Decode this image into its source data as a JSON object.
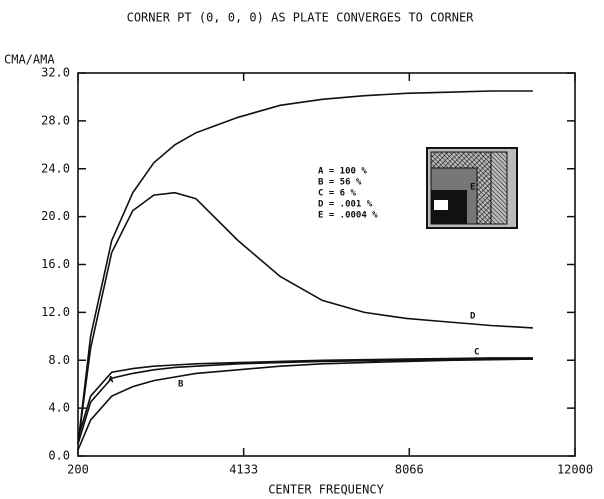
{
  "chart_data": {
    "type": "line",
    "title": "CORNER PT (0, 0, 0) AS PLATE CONVERGES TO CORNER",
    "y_label": "CMA/AMA",
    "x_label": "CENTER FREQUENCY",
    "x": [
      200,
      500,
      1000,
      1500,
      2000,
      2500,
      3000,
      4000,
      5000,
      6000,
      7000,
      8000,
      9000,
      10000,
      11000
    ],
    "series": [
      {
        "name": "A",
        "color": "#111111",
        "values": [
          1,
          4.5,
          6.5,
          6.9,
          7.2,
          7.4,
          7.5,
          7.7,
          7.8,
          7.9,
          7.95,
          8.0,
          8.05,
          8.1,
          8.1
        ]
      },
      {
        "name": "B",
        "color": "#111111",
        "values": [
          0.5,
          3,
          5,
          5.8,
          6.3,
          6.6,
          6.9,
          7.2,
          7.5,
          7.7,
          7.8,
          7.9,
          8.0,
          8.05,
          8.1
        ]
      },
      {
        "name": "C",
        "color": "#111111",
        "values": [
          1.5,
          5,
          7,
          7.3,
          7.5,
          7.6,
          7.7,
          7.8,
          7.9,
          8.0,
          8.05,
          8.1,
          8.15,
          8.2,
          8.2
        ]
      },
      {
        "name": "D",
        "color": "#111111",
        "values": [
          1,
          9,
          17,
          20.5,
          21.8,
          22,
          21.5,
          18,
          15,
          13,
          12,
          11.5,
          11.2,
          10.9,
          10.7
        ]
      },
      {
        "name": "E",
        "color": "#111111",
        "values": [
          1,
          10,
          18,
          22,
          24.5,
          26,
          27,
          28.3,
          29.3,
          29.8,
          30.1,
          30.3,
          30.4,
          30.5,
          30.5
        ]
      }
    ],
    "annotations": [
      "A = 100 %",
      "B = 56 %",
      "C = 6 %",
      "D = .001 %",
      "E = .0004 %"
    ],
    "xlim": [
      200,
      12000
    ],
    "xticks": [
      200,
      4133,
      8066,
      12000
    ],
    "ylim": [
      0,
      32
    ],
    "yticks": [
      {
        "value": 0,
        "label": "0.0"
      },
      {
        "value": 4,
        "label": "4.0"
      },
      {
        "value": 8,
        "label": "8.0"
      },
      {
        "value": 12,
        "label": "12.0"
      },
      {
        "value": 16,
        "label": "16.0"
      },
      {
        "value": 20,
        "label": "20.0"
      },
      {
        "value": 24,
        "label": "24.0"
      },
      {
        "value": 28,
        "label": "28.0"
      },
      {
        "value": 32,
        "label": "32.0"
      }
    ],
    "grid": false
  }
}
